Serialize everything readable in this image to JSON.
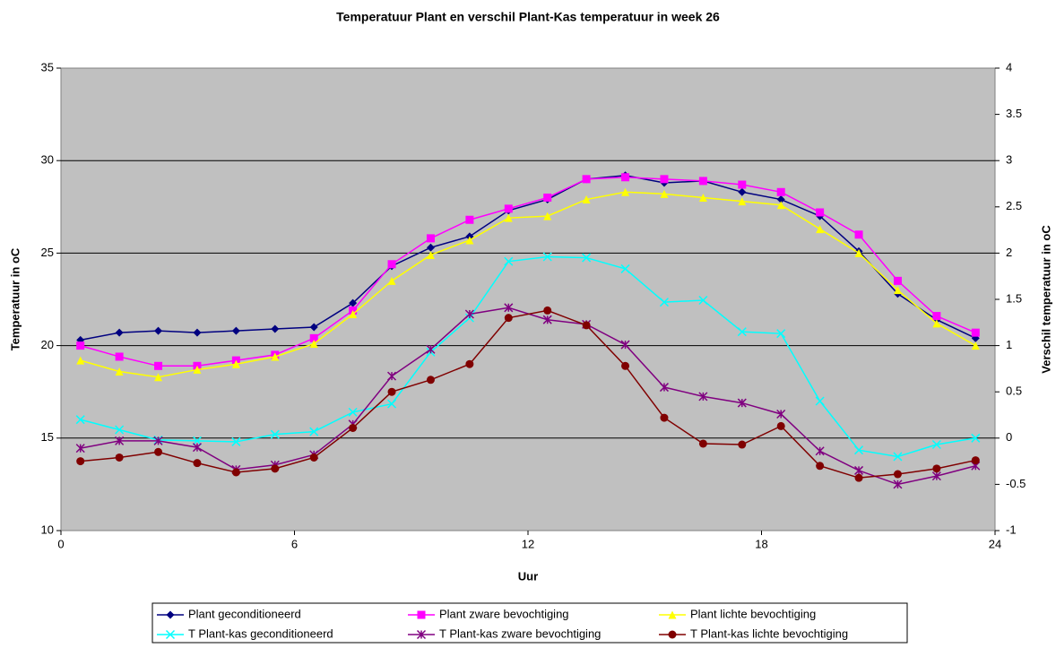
{
  "chart_data": {
    "type": "line",
    "title": "Temperatuur Plant en verschil Plant-Kas temperatuur in week 26",
    "x_label": "Uur",
    "y_label": "Temperatuur in oC",
    "y2_label": "Verschil temperatuur in oC",
    "x": [
      0.5,
      1.5,
      2.5,
      3.5,
      4.5,
      5.5,
      6.5,
      7.5,
      8.5,
      9.5,
      10.5,
      11.5,
      12.5,
      13.5,
      14.5,
      15.5,
      16.5,
      17.5,
      18.5,
      19.5,
      20.5,
      21.5,
      22.5,
      23.5
    ],
    "xlim": [
      0,
      24
    ],
    "xticks": [
      0,
      6,
      12,
      18,
      24
    ],
    "ylim": [
      10,
      35
    ],
    "yticks": [
      10,
      15,
      20,
      25,
      30,
      35
    ],
    "y2lim": [
      -1,
      4
    ],
    "y2ticks": [
      -1,
      -0.5,
      0,
      0.5,
      1,
      1.5,
      2,
      2.5,
      3,
      3.5,
      4
    ],
    "grid": true,
    "legend": "bottom",
    "series": [
      {
        "name": "Plant geconditioneerd",
        "color": "#000080",
        "marker": "diamond",
        "values": [
          20.3,
          20.7,
          20.8,
          20.7,
          20.8,
          20.9,
          21.0,
          22.3,
          24.3,
          25.3,
          25.9,
          27.3,
          27.9,
          29.0,
          29.2,
          28.8,
          28.9,
          28.3,
          27.9,
          27.0,
          25.1,
          22.8,
          21.4,
          20.4
        ]
      },
      {
        "name": "Plant zware bevochtiging",
        "color": "#ff00ff",
        "marker": "square",
        "values": [
          20.0,
          19.4,
          18.9,
          18.9,
          19.2,
          19.5,
          20.4,
          21.9,
          24.4,
          25.8,
          26.8,
          27.4,
          28.0,
          29.0,
          29.1,
          29.0,
          28.9,
          28.7,
          28.3,
          27.2,
          26.0,
          23.5,
          21.6,
          20.7
        ]
      },
      {
        "name": "Plant lichte bevochtiging",
        "color": "#ffff00",
        "marker": "triangle",
        "values": [
          19.2,
          18.6,
          18.3,
          18.7,
          19.0,
          19.4,
          20.1,
          21.7,
          23.5,
          24.9,
          25.7,
          26.9,
          27.0,
          27.9,
          28.3,
          28.2,
          28.0,
          27.8,
          27.6,
          26.3,
          25.0,
          23.0,
          21.2,
          20.0
        ]
      },
      {
        "name": "T  Plant-kas geconditioneerd",
        "color": "#00ffff",
        "marker": "x",
        "axis": "y2",
        "values": [
          0.2,
          0.09,
          -0.02,
          -0.03,
          -0.04,
          0.04,
          0.07,
          0.28,
          0.37,
          0.93,
          1.3,
          1.91,
          1.96,
          1.95,
          1.83,
          1.47,
          1.49,
          1.15,
          1.13,
          0.4,
          -0.13,
          -0.2,
          -0.07,
          0.0
        ]
      },
      {
        "name": "T  Plant-kas zware bevochtiging",
        "color": "#800080",
        "marker": "star",
        "axis": "y2",
        "values": [
          -0.11,
          -0.03,
          -0.03,
          -0.1,
          -0.34,
          -0.29,
          -0.18,
          0.15,
          0.67,
          0.96,
          1.34,
          1.41,
          1.28,
          1.23,
          1.01,
          0.55,
          0.45,
          0.38,
          0.26,
          -0.14,
          -0.35,
          -0.5,
          -0.41,
          -0.3
        ]
      },
      {
        "name": "T  Plant-kas lichte bevochtiging",
        "color": "#800000",
        "marker": "circle",
        "axis": "y2",
        "values": [
          -0.25,
          -0.21,
          -0.15,
          -0.27,
          -0.37,
          -0.33,
          -0.21,
          0.11,
          0.5,
          0.63,
          0.8,
          1.3,
          1.38,
          1.22,
          0.78,
          0.22,
          -0.06,
          -0.07,
          0.13,
          -0.3,
          -0.43,
          -0.39,
          -0.33,
          -0.24
        ]
      }
    ]
  }
}
